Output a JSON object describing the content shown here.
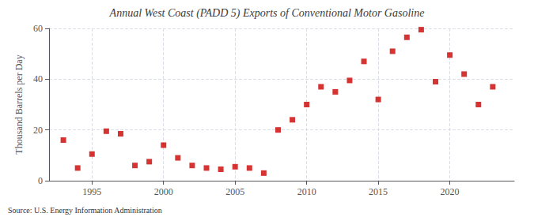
{
  "chart_data": {
    "type": "scatter",
    "title": "Annual West Coast (PADD 5) Exports of Conventional Motor Gasoline",
    "ylabel": "Thousand Barrels per Day",
    "annotations": [
      "Source: U.S. Energy Information Administration"
    ],
    "x": [
      1993,
      1994,
      1995,
      1996,
      1997,
      1998,
      1999,
      2000,
      2001,
      2002,
      2003,
      2004,
      2005,
      2006,
      2007,
      2008,
      2009,
      2010,
      2011,
      2012,
      2013,
      2014,
      2015,
      2016,
      2017,
      2018,
      2019,
      2020,
      2021,
      2022,
      2023
    ],
    "values": [
      16.0,
      5.0,
      10.5,
      19.5,
      18.5,
      6.0,
      7.5,
      14.0,
      9.0,
      6.0,
      5.0,
      4.5,
      5.5,
      5.0,
      3.0,
      20.0,
      24.0,
      30.0,
      37.0,
      35.0,
      39.5,
      47.0,
      32.0,
      51.0,
      56.5,
      59.5,
      39.0,
      49.5,
      42.0,
      30.0,
      37.0
    ],
    "color": "#cc0000",
    "marker": "square",
    "xlim": [
      1992.0,
      2024.5
    ],
    "ylim": [
      0,
      60
    ],
    "xticks": [
      1995,
      2000,
      2005,
      2010,
      2015,
      2020
    ],
    "yticks": [
      0,
      20,
      40,
      60
    ],
    "grid": true
  }
}
